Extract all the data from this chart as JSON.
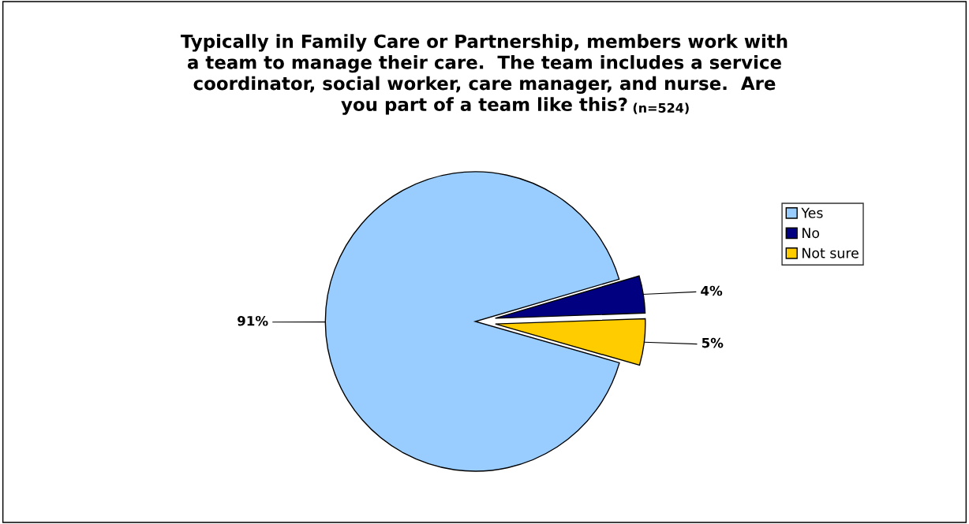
{
  "chart_data": {
    "type": "pie",
    "title": "Typically in Family Care or Partnership, members work with\na team to manage their care.  The team includes a service\ncoordinator, social worker, care manager, and nurse.  Are\nyou part of a team like this?",
    "subtitle": "(n=524)",
    "categories": [
      "Yes",
      "No",
      "Not sure"
    ],
    "values": [
      91,
      4,
      5
    ],
    "value_labels": [
      "91%",
      "4%",
      "5%"
    ],
    "colors": [
      "#99ccff",
      "#000080",
      "#ffcc00"
    ],
    "legend": "right"
  }
}
